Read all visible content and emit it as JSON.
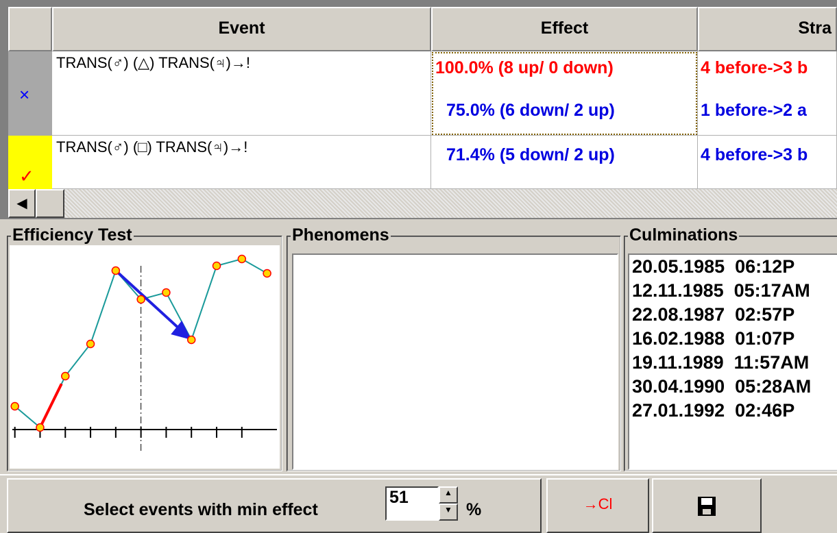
{
  "table": {
    "headers": [
      "Event",
      "Effect",
      "Stra"
    ],
    "rows": [
      {
        "marker": "×",
        "event": "TRANS(♂) (△) TRANS(♃)→!",
        "effect": [
          "100.0% (8 up/ 0 down)",
          "75.0% (6 down/ 2 up)"
        ],
        "strategy": [
          "4 before->3 b",
          "1 before->2 a"
        ]
      },
      {
        "marker": "✓",
        "event": "TRANS(♂) (□) TRANS(♃)→!",
        "effect": [
          "71.4% (5 down/ 2 up)"
        ],
        "strategy": [
          "4 before->3 b"
        ]
      }
    ]
  },
  "efficiency_test": {
    "title": "Efficiency Test"
  },
  "chart_data": {
    "type": "line",
    "x": [
      0,
      1,
      2,
      3,
      4,
      5,
      6,
      7,
      8,
      9,
      10
    ],
    "values": [
      34,
      3,
      78,
      125,
      232,
      190,
      200,
      131,
      239,
      249,
      228
    ],
    "color": "#1a9a9a",
    "marker_color": "#ffd700",
    "xlim": [
      -0.1,
      10.5
    ],
    "ylim": [
      0,
      260
    ],
    "xticks": [
      0,
      1,
      2,
      3,
      4,
      5,
      6,
      7,
      8,
      9
    ]
  },
  "phenomens": {
    "title": "Phenomens"
  },
  "culminations": {
    "title": "Culminations",
    "items": [
      "20.05.1985  06:12P",
      "12.11.1985  05:17AM",
      "22.08.1987  02:57P",
      "16.02.1988  01:07P",
      "19.11.1989  11:57AM",
      "30.04.1990  05:28AM",
      "27.01.1992  02:46P"
    ]
  },
  "footer": {
    "label": "Select events with min effect",
    "min_effect": 51,
    "unit": "%",
    "button": "→Cl"
  }
}
